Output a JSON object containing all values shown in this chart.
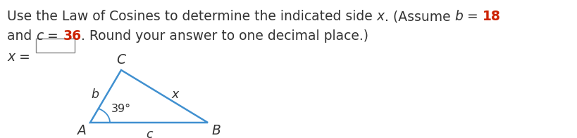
{
  "background_color": "#ffffff",
  "font_size": 13.5,
  "tri_color": "#4090d0",
  "tri_lw": 1.8,
  "A": [
    0.155,
    0.13
  ],
  "B": [
    0.48,
    0.13
  ],
  "C": [
    0.215,
    0.72
  ],
  "label_color": "#333333",
  "red_color": "#cc2200",
  "line1_normal": "Use the Law of Cosines to determine the indicated side ",
  "line1_italic_x": "x",
  "line1_cont": ". (Assume ",
  "line1_italic_b": "b",
  "line1_eq": " = ",
  "line1_red": "18",
  "line2_start": "and ",
  "line2_italic_c": "c",
  "line2_eq": " = ",
  "line2_red": "36",
  "line2_end": ". Round your answer to one decimal place.)",
  "xlabel": "x = "
}
